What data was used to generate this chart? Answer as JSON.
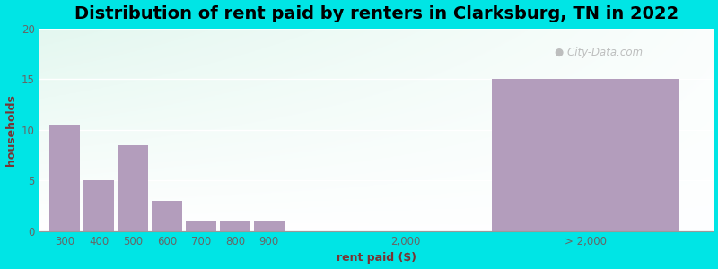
{
  "title": "Distribution of rent paid by renters in Clarksburg, TN in 2022",
  "xlabel": "rent paid ($)",
  "ylabel": "households",
  "bar_color": "#b39dbc",
  "background_outer": "#00e5e5",
  "ylim": [
    0,
    20
  ],
  "yticks": [
    0,
    5,
    10,
    15,
    20
  ],
  "title_fontsize": 14,
  "axis_label_fontsize": 9,
  "tick_fontsize": 8.5,
  "watermark": "City-Data.com",
  "categories": [
    "300",
    "400",
    "500",
    "600",
    "700",
    "800",
    "900",
    "2,000",
    "> 2,000"
  ],
  "values": [
    10.5,
    5,
    8.5,
    3,
    1,
    1,
    1,
    0,
    15
  ],
  "x_left": [
    0,
    1,
    2,
    3,
    4,
    5,
    6,
    10,
    13
  ],
  "bar_widths": [
    0.9,
    0.9,
    0.9,
    0.9,
    0.9,
    0.9,
    0.9,
    0.9,
    5.5
  ],
  "tick_x": [
    0.45,
    1.45,
    2.45,
    3.45,
    4.45,
    5.45,
    6.45,
    10.45,
    15.75
  ],
  "xlim": [
    -0.3,
    19.5
  ]
}
